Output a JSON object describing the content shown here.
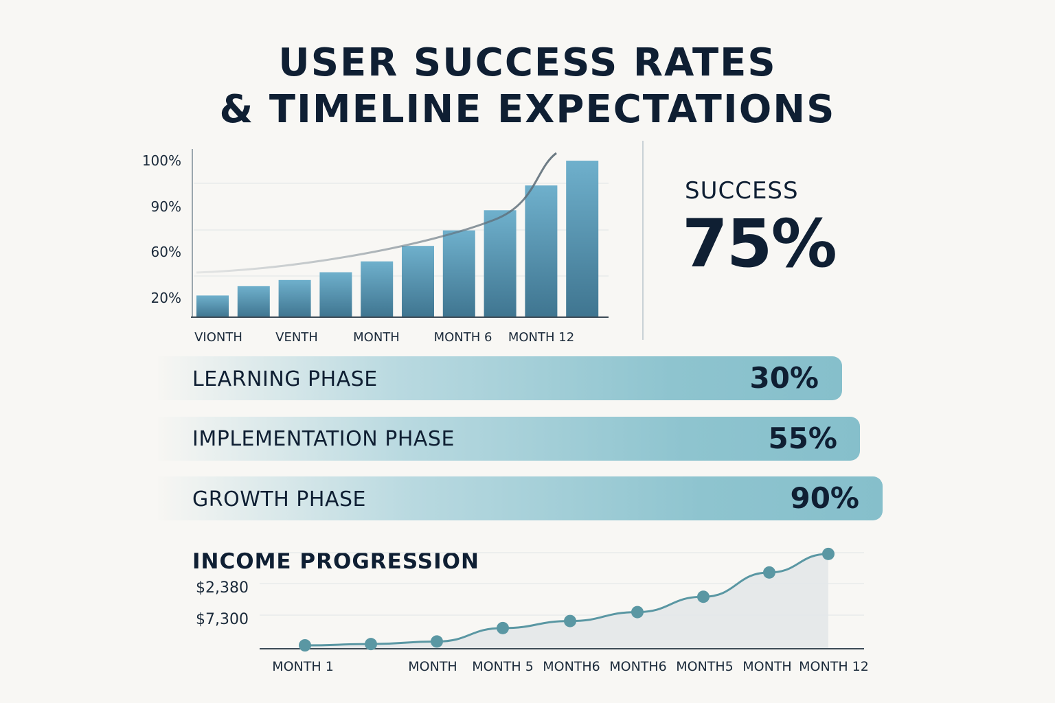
{
  "title": {
    "line1": "USER SUCCESS RATES",
    "line2": "& TIMELINE EXPECTATIONS"
  },
  "success": {
    "label": "SUCCESS",
    "value": "75%"
  },
  "colors": {
    "bar_top": "#6fb0cc",
    "bar_bottom": "#3f7590",
    "phase_fill": "#86bfcb",
    "income_line": "#5a97a3",
    "title_text": "#0f1f33"
  },
  "phases": [
    {
      "label": "LEARNING PHASE",
      "value": "30%"
    },
    {
      "label": "IMPLEMENTATION PHASE",
      "value": "55%"
    },
    {
      "label": "GROWTH PHASE",
      "value": "90%"
    }
  ],
  "chart_data": [
    {
      "type": "bar",
      "title": "",
      "ytick_labels": [
        "20%",
        "60%",
        "90%",
        "100%"
      ],
      "xtick_labels": [
        "VIONTH",
        "VENTH",
        "MONTH",
        "MONTH 6",
        "MONTH 12"
      ],
      "values": [
        14,
        20,
        24,
        29,
        36,
        46,
        56,
        69,
        85,
        101
      ],
      "trend_line": true,
      "grid": true,
      "ylim": [
        0,
        105
      ]
    },
    {
      "type": "area",
      "title": "INCOME PROGRESSION",
      "ytick_labels": [
        "$2,380",
        "$7,300"
      ],
      "xtick_labels": [
        "MONTH 1",
        "MONTH",
        "MONTH 5",
        "MONTH6",
        "MONTH6",
        "MONTH5",
        "MONTH",
        "MONTH 12"
      ],
      "values": [
        0,
        2,
        6,
        27,
        38,
        52,
        76,
        114,
        143
      ],
      "grid": true,
      "ylim": [
        0,
        145
      ]
    }
  ]
}
